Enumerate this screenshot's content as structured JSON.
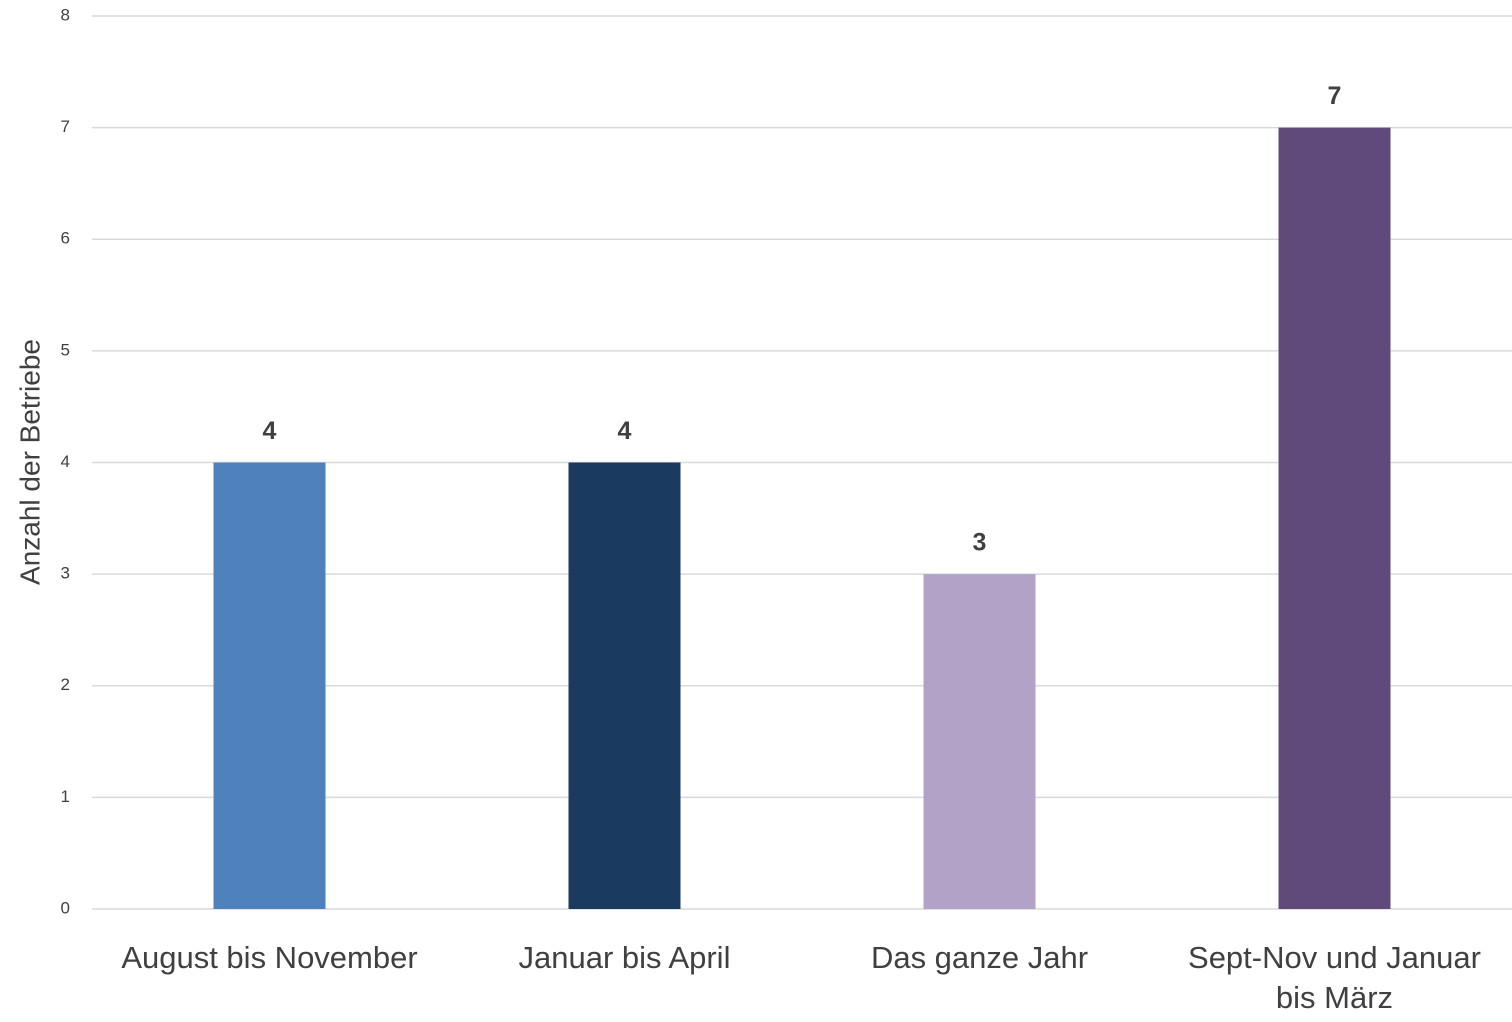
{
  "chart_data": {
    "type": "bar",
    "y_label": "Anzahl der Betriebe",
    "categories": [
      "August bis November",
      "Januar bis April",
      "Das ganze Jahr",
      "Sept-Nov und Januar bis März"
    ],
    "values": [
      4,
      4,
      3,
      7
    ],
    "colors": [
      "#4f81bd",
      "#1b3a5f",
      "#b3a2c7",
      "#604a7b"
    ],
    "ylim": [
      0,
      8
    ],
    "yticks": [
      0,
      1,
      2,
      3,
      4,
      5,
      6,
      7,
      8
    ],
    "grid": true
  }
}
